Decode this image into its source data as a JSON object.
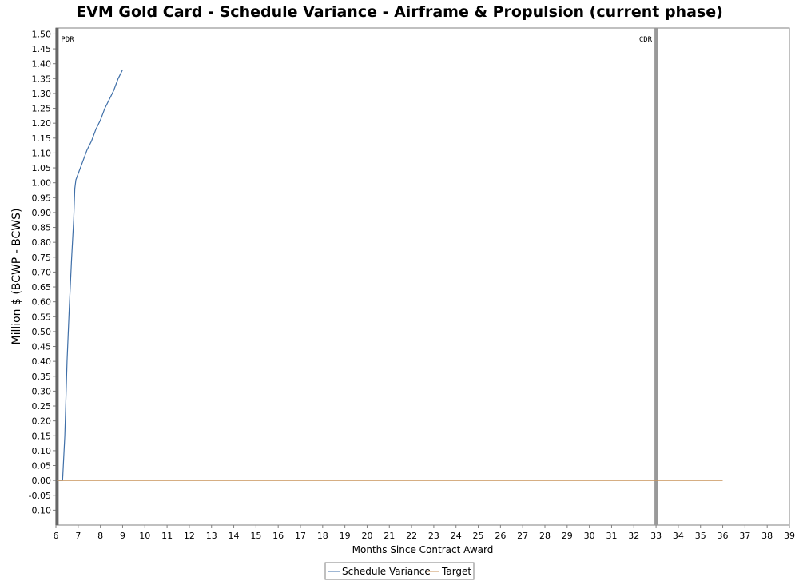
{
  "chart_data": {
    "type": "line",
    "title": "EVM Gold Card - Schedule Variance - Airframe & Propulsion (current phase)",
    "xlabel": "Months Since Contract Award",
    "ylabel": "Million $ (BCWP - BCWS)",
    "xlim": [
      6,
      39
    ],
    "ylim": [
      -0.15,
      1.52
    ],
    "x_ticks": [
      6,
      7,
      8,
      9,
      10,
      11,
      12,
      13,
      14,
      15,
      16,
      17,
      18,
      19,
      20,
      21,
      22,
      23,
      24,
      25,
      26,
      27,
      28,
      29,
      30,
      31,
      32,
      33,
      34,
      35,
      36,
      37,
      38,
      39
    ],
    "y_ticks": [
      "-0.10",
      "-0.05",
      "0.00",
      "0.05",
      "0.10",
      "0.15",
      "0.20",
      "0.25",
      "0.30",
      "0.35",
      "0.40",
      "0.45",
      "0.50",
      "0.55",
      "0.60",
      "0.65",
      "0.70",
      "0.75",
      "0.80",
      "0.85",
      "0.90",
      "0.95",
      "1.00",
      "1.05",
      "1.10",
      "1.15",
      "1.20",
      "1.25",
      "1.30",
      "1.35",
      "1.40",
      "1.45",
      "1.50"
    ],
    "grid": false,
    "legend": "bottom-center",
    "markers": [
      {
        "label": "PDR",
        "x": 6.05,
        "color": "#666666"
      },
      {
        "label": "CDR",
        "x": 33.0,
        "color": "#999999"
      }
    ],
    "series": [
      {
        "name": "Schedule Variance",
        "color": "#3f6fa8",
        "x": [
          6.05,
          6.3,
          6.4,
          6.5,
          6.6,
          6.7,
          6.8,
          6.85,
          6.9,
          7.0,
          7.2,
          7.4,
          7.6,
          7.8,
          8.0,
          8.2,
          8.4,
          8.6,
          8.8,
          9.0
        ],
        "y": [
          0.0,
          0.0,
          0.15,
          0.4,
          0.58,
          0.74,
          0.88,
          0.98,
          1.01,
          1.03,
          1.07,
          1.11,
          1.14,
          1.18,
          1.21,
          1.25,
          1.28,
          1.31,
          1.35,
          1.38
        ]
      },
      {
        "name": "Target",
        "color": "#c8935a",
        "x": [
          6.05,
          36.0
        ],
        "y": [
          0.0,
          0.0
        ]
      }
    ]
  }
}
